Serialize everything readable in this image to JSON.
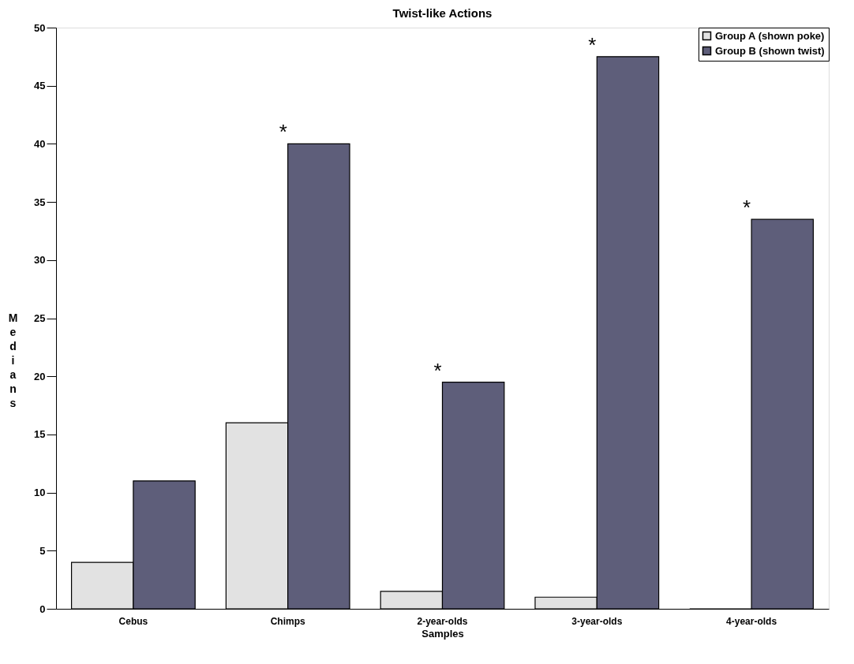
{
  "chart_data": {
    "type": "bar",
    "title": "Twist-like Actions",
    "xlabel": "Samples",
    "ylabel": "Medians",
    "categories": [
      "Cebus",
      "Chimps",
      "2-year-olds",
      "3-year-olds",
      "4-year-olds"
    ],
    "series": [
      {
        "name": "Group A (shown poke)",
        "color": "#e2e2e2",
        "values": [
          4,
          16,
          1.5,
          1,
          0
        ]
      },
      {
        "name": "Group B (shown twist)",
        "color": "#5e5e7a",
        "values": [
          11,
          40,
          19.5,
          47.5,
          33.5
        ]
      }
    ],
    "ylim": [
      0,
      50
    ],
    "yticks": [
      0,
      5,
      10,
      15,
      20,
      25,
      30,
      35,
      40,
      45,
      50
    ],
    "grid": false,
    "legend": "top right",
    "annotations": [
      {
        "text": "*",
        "x": "Chimps",
        "y": 40
      },
      {
        "text": "*",
        "x": "2-year-olds",
        "y": 19.5
      },
      {
        "text": "*",
        "x": "3-year-olds",
        "y": 47.5
      },
      {
        "text": "*",
        "x": "4-year-olds",
        "y": 33.5
      }
    ]
  }
}
